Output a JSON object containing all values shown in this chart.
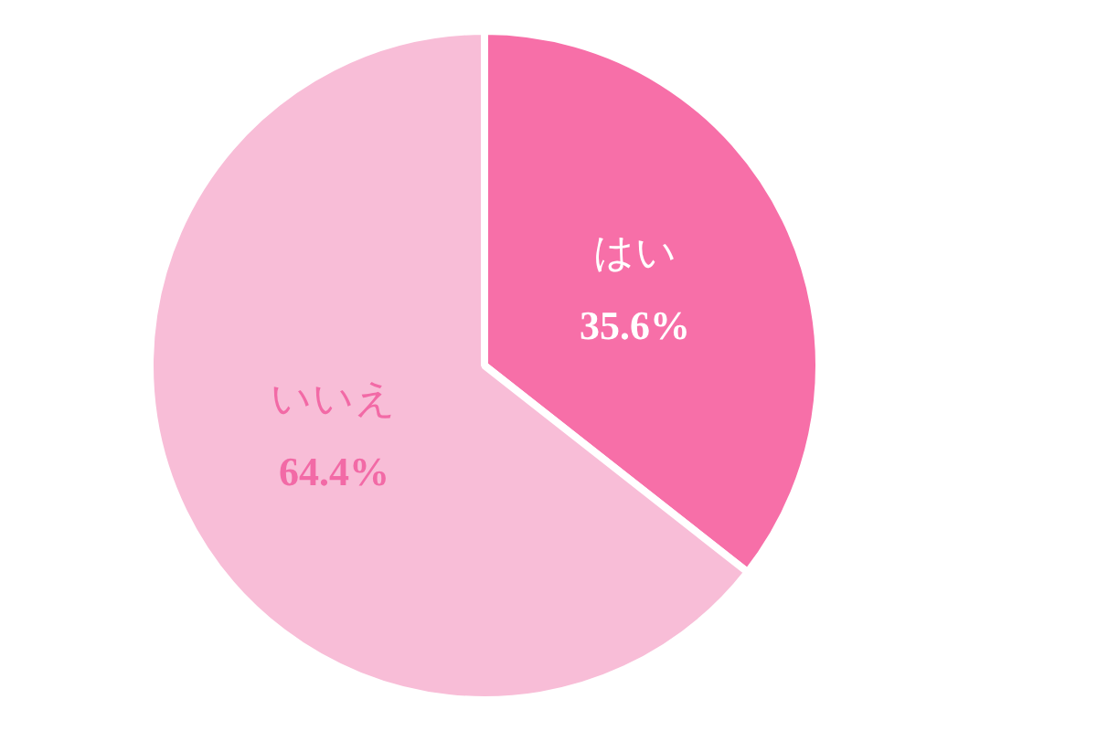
{
  "chart_data": {
    "type": "pie",
    "categories": [
      "はい",
      "いいえ"
    ],
    "values": [
      35.6,
      64.4
    ],
    "colors": [
      "#f76fa8",
      "#f8bdd7"
    ],
    "value_labels": [
      "35.6%",
      "64.4%"
    ],
    "legend": false
  }
}
